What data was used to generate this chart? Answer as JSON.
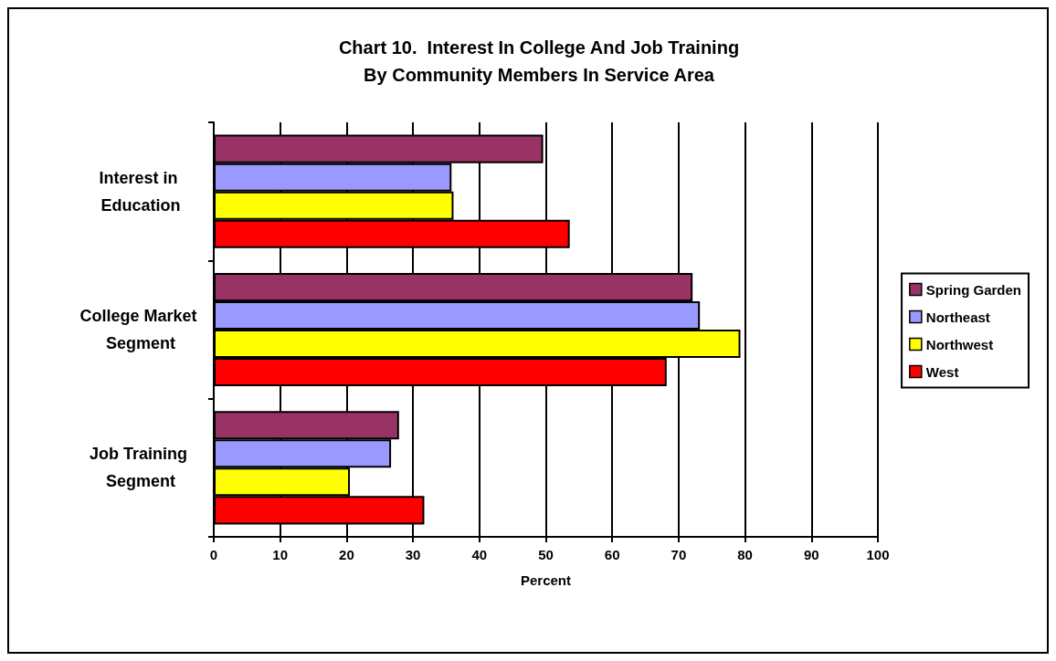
{
  "chart_data": {
    "type": "bar",
    "orientation": "horizontal",
    "title": "Chart 10.  Interest In College And Job Training\nBy Community Members In Service Area",
    "xlabel": "Percent",
    "categories": [
      "Interest in Education",
      "College Market Segment",
      "Job Training Segment"
    ],
    "series": [
      {
        "name": "Spring Garden",
        "color": "#993366",
        "values": [
          49.6,
          72.1,
          27.9
        ]
      },
      {
        "name": "Northeast",
        "color": "#9999ff",
        "values": [
          35.8,
          73.2,
          26.7
        ]
      },
      {
        "name": "Northwest",
        "color": "#ffff00",
        "values": [
          36.1,
          79.3,
          20.5
        ]
      },
      {
        "name": "West",
        "color": "#ff0000",
        "values": [
          53.6,
          68.2,
          31.7
        ]
      }
    ],
    "xlim": [
      0,
      100
    ],
    "xticks": [
      0,
      10,
      20,
      30,
      40,
      50,
      60,
      70,
      80,
      90,
      100
    ],
    "grid": "x",
    "legend": "right"
  }
}
